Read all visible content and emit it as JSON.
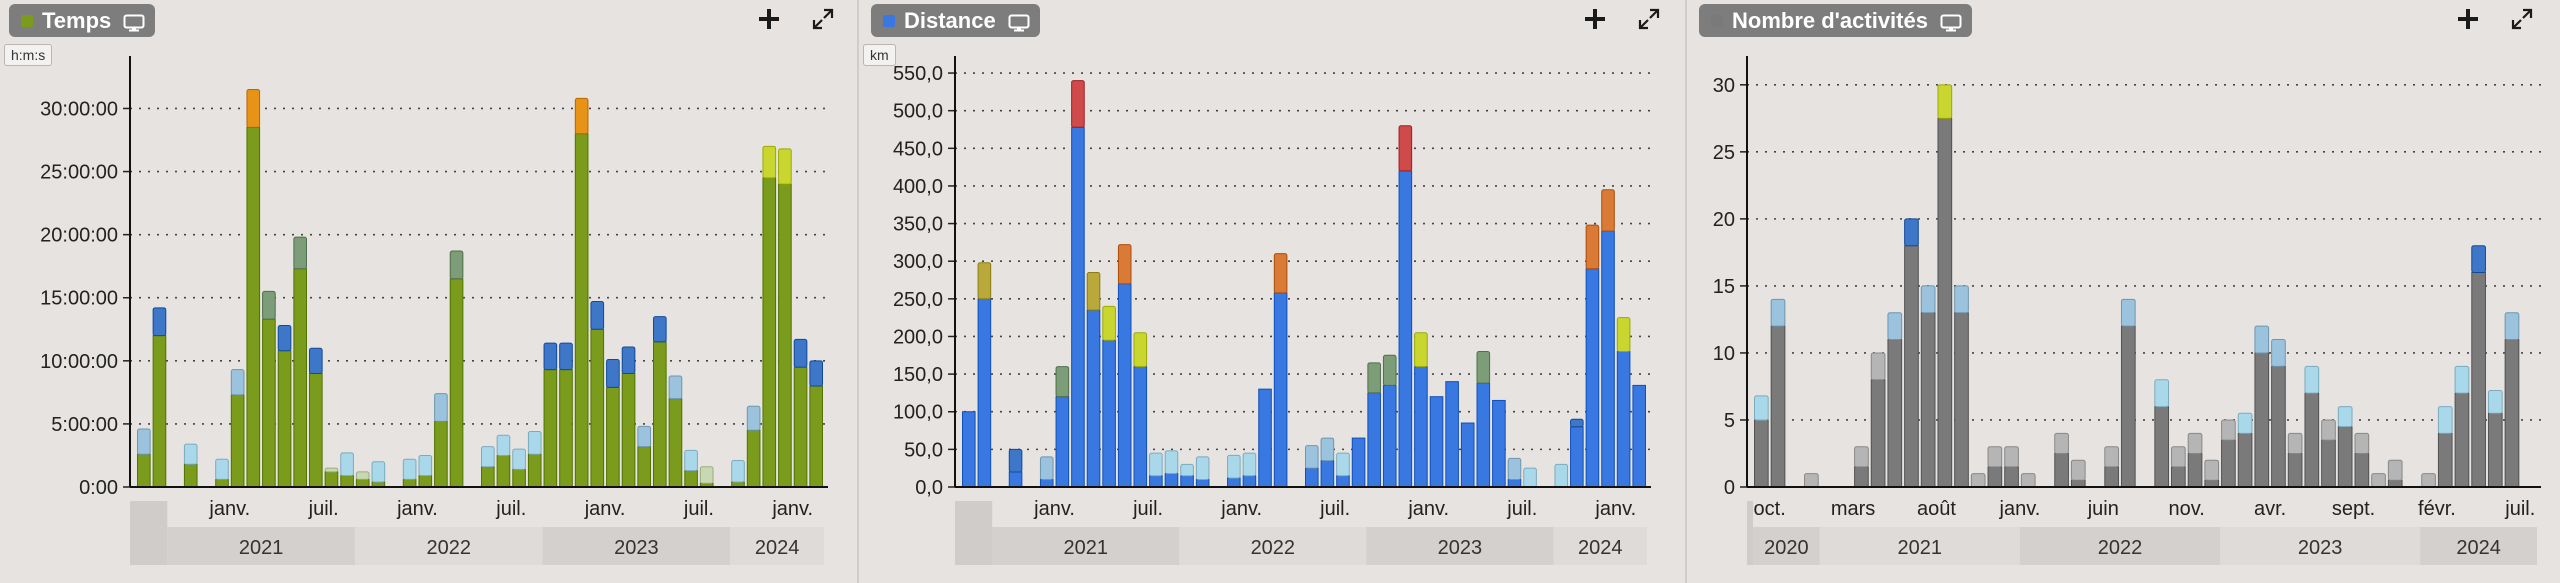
{
  "panels": [
    {
      "title": "Temps",
      "color": "#7a9b1c",
      "unit_label": "h:m:s",
      "add_label": "+",
      "chart_data": {
        "type": "bar",
        "stacked": true,
        "y_ticks": [
          "0:00",
          "5:00:00",
          "10:00:00",
          "15:00:00",
          "20:00:00",
          "25:00:00",
          "30:00:00"
        ],
        "ylim": [
          0,
          34
        ],
        "y_tick_values": [
          0,
          5,
          10,
          15,
          20,
          25,
          30
        ],
        "x_tick_labels": [
          {
            "label": "janv.",
            "x": 6
          },
          {
            "label": "juil.",
            "x": 12
          },
          {
            "label": "janv.",
            "x": 18
          },
          {
            "label": "juil.",
            "x": 24
          },
          {
            "label": "janv.",
            "x": 30
          },
          {
            "label": "juil.",
            "x": 36
          },
          {
            "label": "janv.",
            "x": 42
          },
          {
            "label": "juil.",
            "x": 48
          }
        ],
        "year_bands": [
          {
            "label": "2021",
            "from": 2,
            "to": 14
          },
          {
            "label": "2022",
            "from": 14,
            "to": 26
          },
          {
            "label": "2023",
            "from": 26,
            "to": 38
          },
          {
            "label": "2024",
            "from": 38,
            "to": 44
          }
        ],
        "n_slots": 44,
        "bars": [
          {
            "x": 0,
            "base": 2.6,
            "top": 2.0,
            "cap": "#9bc3dd"
          },
          {
            "x": 1,
            "base": 12.0,
            "top": 2.2,
            "cap": "#3e77c8"
          },
          {
            "x": 3,
            "base": 1.8,
            "top": 1.6,
            "cap": "#a8d8ea"
          },
          {
            "x": 5,
            "base": 0.6,
            "top": 1.6,
            "cap": "#a8d8ea"
          },
          {
            "x": 6,
            "base": 7.3,
            "top": 2.0,
            "cap": "#9bc3dd"
          },
          {
            "x": 7,
            "base": 28.5,
            "top": 3.0,
            "cap": "#e69317"
          },
          {
            "x": 8,
            "base": 13.3,
            "top": 2.2,
            "cap": "#7d9d78"
          },
          {
            "x": 9,
            "base": 10.8,
            "top": 2.0,
            "cap": "#3e77c8"
          },
          {
            "x": 10,
            "base": 17.3,
            "top": 2.5,
            "cap": "#7d9d78"
          },
          {
            "x": 11,
            "base": 9.0,
            "top": 2.0,
            "cap": "#3e77c8"
          },
          {
            "x": 12,
            "base": 1.2,
            "top": 0.3,
            "cap": "#c7d9b0"
          },
          {
            "x": 13,
            "base": 0.9,
            "top": 1.8,
            "cap": "#a8d8ea"
          },
          {
            "x": 14,
            "base": 0.6,
            "top": 0.6,
            "cap": "#c7d9b0"
          },
          {
            "x": 15,
            "base": 0.4,
            "top": 1.6,
            "cap": "#a8d8ea"
          },
          {
            "x": 17,
            "base": 0.6,
            "top": 1.6,
            "cap": "#a8d8ea"
          },
          {
            "x": 18,
            "base": 0.9,
            "top": 1.6,
            "cap": "#a8d8ea"
          },
          {
            "x": 19,
            "base": 5.2,
            "top": 2.2,
            "cap": "#9bc3dd"
          },
          {
            "x": 20,
            "base": 16.5,
            "top": 2.2,
            "cap": "#7d9d78"
          },
          {
            "x": 22,
            "base": 1.6,
            "top": 1.6,
            "cap": "#a8d8ea"
          },
          {
            "x": 23,
            "base": 2.5,
            "top": 1.6,
            "cap": "#a8d8ea"
          },
          {
            "x": 24,
            "base": 1.4,
            "top": 1.6,
            "cap": "#a8d8ea"
          },
          {
            "x": 25,
            "base": 2.6,
            "top": 1.8,
            "cap": "#a8d8ea"
          },
          {
            "x": 26,
            "base": 9.3,
            "top": 2.1,
            "cap": "#3e77c8"
          },
          {
            "x": 27,
            "base": 9.3,
            "top": 2.1,
            "cap": "#3e77c8"
          },
          {
            "x": 28,
            "base": 28.0,
            "top": 2.8,
            "cap": "#e69317"
          },
          {
            "x": 29,
            "base": 12.5,
            "top": 2.2,
            "cap": "#3e77c8"
          },
          {
            "x": 30,
            "base": 7.9,
            "top": 2.2,
            "cap": "#3e77c8"
          },
          {
            "x": 31,
            "base": 9.0,
            "top": 2.1,
            "cap": "#3e77c8"
          },
          {
            "x": 32,
            "base": 3.2,
            "top": 1.6,
            "cap": "#9bc3dd"
          },
          {
            "x": 33,
            "base": 11.5,
            "top": 2.0,
            "cap": "#3e77c8"
          },
          {
            "x": 34,
            "base": 7.0,
            "top": 1.8,
            "cap": "#9bc3dd"
          },
          {
            "x": 35,
            "base": 1.3,
            "top": 1.6,
            "cap": "#a8d8ea"
          },
          {
            "x": 36,
            "base": 0.3,
            "top": 1.3,
            "cap": "#c7d9b0"
          },
          {
            "x": 38,
            "base": 0.4,
            "top": 1.7,
            "cap": "#a8d8ea"
          },
          {
            "x": 39,
            "base": 4.5,
            "top": 1.9,
            "cap": "#9bc3dd"
          },
          {
            "x": 40,
            "base": 24.5,
            "top": 2.5,
            "cap": "#c9d630"
          },
          {
            "x": 41,
            "base": 24.0,
            "top": 2.8,
            "cap": "#c9d630"
          },
          {
            "x": 42,
            "base": 9.5,
            "top": 2.2,
            "cap": "#3e77c8"
          },
          {
            "x": 43,
            "base": 8.0,
            "top": 2.0,
            "cap": "#3e77c8"
          }
        ]
      }
    },
    {
      "title": "Distance",
      "color": "#3978e0",
      "unit_label": "km",
      "add_label": "+",
      "chart_data": {
        "type": "bar",
        "stacked": true,
        "y_ticks": [
          "0,0",
          "50,0",
          "100,0",
          "150,0",
          "200,0",
          "250,0",
          "300,0",
          "350,0",
          "400,0",
          "450,0",
          "500,0",
          "550,0"
        ],
        "ylim": [
          0,
          570
        ],
        "y_tick_values": [
          0,
          50,
          100,
          150,
          200,
          250,
          300,
          350,
          400,
          450,
          500,
          550
        ],
        "x_tick_labels": [
          {
            "label": "janv.",
            "x": 6
          },
          {
            "label": "juil.",
            "x": 12
          },
          {
            "label": "janv.",
            "x": 18
          },
          {
            "label": "juil.",
            "x": 24
          },
          {
            "label": "janv.",
            "x": 30
          },
          {
            "label": "juil.",
            "x": 36
          },
          {
            "label": "janv.",
            "x": 42
          },
          {
            "label": "juil.",
            "x": 48
          }
        ],
        "year_bands": [
          {
            "label": "2021",
            "from": 2,
            "to": 14
          },
          {
            "label": "2022",
            "from": 14,
            "to": 26
          },
          {
            "label": "2023",
            "from": 26,
            "to": 38
          },
          {
            "label": "2024",
            "from": 38,
            "to": 44
          }
        ],
        "n_slots": 44,
        "bars": [
          {
            "x": 0,
            "base": 100,
            "top": 0,
            "cap": "#3e77c8"
          },
          {
            "x": 1,
            "base": 250,
            "top": 48,
            "cap": "#b9a93b"
          },
          {
            "x": 3,
            "base": 20,
            "top": 30,
            "cap": "#3e77c8"
          },
          {
            "x": 5,
            "base": 10,
            "top": 30,
            "cap": "#9bc3dd"
          },
          {
            "x": 6,
            "base": 120,
            "top": 40,
            "cap": "#7d9d78"
          },
          {
            "x": 7,
            "base": 478,
            "top": 62,
            "cap": "#cf4a4a"
          },
          {
            "x": 8,
            "base": 235,
            "top": 50,
            "cap": "#b9a93b"
          },
          {
            "x": 9,
            "base": 195,
            "top": 45,
            "cap": "#c9d630"
          },
          {
            "x": 10,
            "base": 270,
            "top": 52,
            "cap": "#d97b36"
          },
          {
            "x": 11,
            "base": 160,
            "top": 45,
            "cap": "#c9d630"
          },
          {
            "x": 12,
            "base": 15,
            "top": 30,
            "cap": "#a8d8ea"
          },
          {
            "x": 13,
            "base": 18,
            "top": 30,
            "cap": "#a8d8ea"
          },
          {
            "x": 14,
            "base": 15,
            "top": 15,
            "cap": "#a8d8ea"
          },
          {
            "x": 15,
            "base": 10,
            "top": 30,
            "cap": "#a8d8ea"
          },
          {
            "x": 17,
            "base": 12,
            "top": 30,
            "cap": "#a8d8ea"
          },
          {
            "x": 18,
            "base": 15,
            "top": 30,
            "cap": "#a8d8ea"
          },
          {
            "x": 19,
            "base": 130,
            "top": 0,
            "cap": "#3e77c8"
          },
          {
            "x": 20,
            "base": 258,
            "top": 52,
            "cap": "#d97b36"
          },
          {
            "x": 22,
            "base": 25,
            "top": 30,
            "cap": "#9bc3dd"
          },
          {
            "x": 23,
            "base": 35,
            "top": 30,
            "cap": "#9bc3dd"
          },
          {
            "x": 24,
            "base": 15,
            "top": 30,
            "cap": "#a8d8ea"
          },
          {
            "x": 25,
            "base": 65,
            "top": 0,
            "cap": "#3e77c8"
          },
          {
            "x": 26,
            "base": 125,
            "top": 40,
            "cap": "#7d9d78"
          },
          {
            "x": 27,
            "base": 135,
            "top": 40,
            "cap": "#7d9d78"
          },
          {
            "x": 28,
            "base": 420,
            "top": 60,
            "cap": "#cf4a4a"
          },
          {
            "x": 29,
            "base": 160,
            "top": 45,
            "cap": "#c9d630"
          },
          {
            "x": 30,
            "base": 120,
            "top": 0,
            "cap": "#3e77c8"
          },
          {
            "x": 31,
            "base": 140,
            "top": 0,
            "cap": "#3e77c8"
          },
          {
            "x": 32,
            "base": 85,
            "top": 0,
            "cap": "#3e77c8"
          },
          {
            "x": 33,
            "base": 138,
            "top": 42,
            "cap": "#7d9d78"
          },
          {
            "x": 34,
            "base": 115,
            "top": 0,
            "cap": "#3e77c8"
          },
          {
            "x": 35,
            "base": 10,
            "top": 28,
            "cap": "#9bc3dd"
          },
          {
            "x": 36,
            "base": 0,
            "top": 25,
            "cap": "#a8d8ea"
          },
          {
            "x": 38,
            "base": 0,
            "top": 30,
            "cap": "#a8d8ea"
          },
          {
            "x": 39,
            "base": 80,
            "top": 10,
            "cap": "#3e77c8"
          },
          {
            "x": 40,
            "base": 290,
            "top": 58,
            "cap": "#d97b36"
          },
          {
            "x": 41,
            "base": 340,
            "top": 55,
            "cap": "#d97b36"
          },
          {
            "x": 42,
            "base": 180,
            "top": 45,
            "cap": "#c9d630"
          },
          {
            "x": 43,
            "base": 135,
            "top": 0,
            "cap": "#3e77c8"
          }
        ]
      }
    },
    {
      "title": "Nombre d'activités",
      "color": "#7a7a7a",
      "unit_label": "",
      "add_label": "+",
      "chart_data": {
        "type": "bar",
        "stacked": true,
        "y_ticks": [
          "0",
          "5",
          "10",
          "15",
          "20",
          "25",
          "30"
        ],
        "ylim": [
          0,
          32
        ],
        "y_tick_values": [
          0,
          5,
          10,
          15,
          20,
          25,
          30
        ],
        "x_tick_labels": [
          {
            "label": "oct.",
            "x": 1
          },
          {
            "label": "mars",
            "x": 6
          },
          {
            "label": "août",
            "x": 11
          },
          {
            "label": "janv.",
            "x": 16
          },
          {
            "label": "juin",
            "x": 21
          },
          {
            "label": "nov.",
            "x": 26
          },
          {
            "label": "avr.",
            "x": 31
          },
          {
            "label": "sept.",
            "x": 36
          },
          {
            "label": "févr.",
            "x": 41
          },
          {
            "label": "juil.",
            "x": 46
          }
        ],
        "year_bands": [
          {
            "label": "2020",
            "from": 0,
            "to": 4
          },
          {
            "label": "2021",
            "from": 4,
            "to": 16
          },
          {
            "label": "2022",
            "from": 16,
            "to": 28
          },
          {
            "label": "2023",
            "from": 28,
            "to": 40
          },
          {
            "label": "2024",
            "from": 40,
            "to": 47
          }
        ],
        "n_slots": 47,
        "bars": [
          {
            "x": 0,
            "base": 5,
            "top": 1.8,
            "cap": "#a8d8ea"
          },
          {
            "x": 1,
            "base": 12,
            "top": 2.0,
            "cap": "#9bc3dd"
          },
          {
            "x": 3,
            "base": 0,
            "top": 1.0,
            "cap": "#b5b5b5"
          },
          {
            "x": 6,
            "base": 1.5,
            "top": 1.5,
            "cap": "#b5b5b5"
          },
          {
            "x": 7,
            "base": 8,
            "top": 2.0,
            "cap": "#b5b5b5"
          },
          {
            "x": 8,
            "base": 11,
            "top": 2.0,
            "cap": "#9bc3dd"
          },
          {
            "x": 9,
            "base": 18,
            "top": 2.0,
            "cap": "#3e77c8"
          },
          {
            "x": 10,
            "base": 13,
            "top": 2.0,
            "cap": "#9bc3dd"
          },
          {
            "x": 11,
            "base": 27.5,
            "top": 2.5,
            "cap": "#c9d630"
          },
          {
            "x": 12,
            "base": 13,
            "top": 2.0,
            "cap": "#9bc3dd"
          },
          {
            "x": 13,
            "base": 0,
            "top": 1.0,
            "cap": "#b5b5b5"
          },
          {
            "x": 14,
            "base": 1.5,
            "top": 1.5,
            "cap": "#b5b5b5"
          },
          {
            "x": 15,
            "base": 1.5,
            "top": 1.5,
            "cap": "#b5b5b5"
          },
          {
            "x": 16,
            "base": 0,
            "top": 1.0,
            "cap": "#b5b5b5"
          },
          {
            "x": 18,
            "base": 2.5,
            "top": 1.5,
            "cap": "#b5b5b5"
          },
          {
            "x": 19,
            "base": 0.5,
            "top": 1.5,
            "cap": "#b5b5b5"
          },
          {
            "x": 21,
            "base": 1.5,
            "top": 1.5,
            "cap": "#b5b5b5"
          },
          {
            "x": 22,
            "base": 12,
            "top": 2.0,
            "cap": "#9bc3dd"
          },
          {
            "x": 24,
            "base": 6,
            "top": 2.0,
            "cap": "#a8d8ea"
          },
          {
            "x": 25,
            "base": 1.5,
            "top": 1.5,
            "cap": "#b5b5b5"
          },
          {
            "x": 26,
            "base": 2.5,
            "top": 1.5,
            "cap": "#b5b5b5"
          },
          {
            "x": 27,
            "base": 0.5,
            "top": 1.5,
            "cap": "#b5b5b5"
          },
          {
            "x": 28,
            "base": 3.5,
            "top": 1.5,
            "cap": "#b5b5b5"
          },
          {
            "x": 29,
            "base": 4,
            "top": 1.5,
            "cap": "#a8d8ea"
          },
          {
            "x": 30,
            "base": 10,
            "top": 2.0,
            "cap": "#9bc3dd"
          },
          {
            "x": 31,
            "base": 9,
            "top": 2.0,
            "cap": "#9bc3dd"
          },
          {
            "x": 32,
            "base": 2.5,
            "top": 1.5,
            "cap": "#b5b5b5"
          },
          {
            "x": 33,
            "base": 7,
            "top": 2.0,
            "cap": "#a8d8ea"
          },
          {
            "x": 34,
            "base": 3.5,
            "top": 1.5,
            "cap": "#b5b5b5"
          },
          {
            "x": 35,
            "base": 4.5,
            "top": 1.5,
            "cap": "#a8d8ea"
          },
          {
            "x": 36,
            "base": 2.5,
            "top": 1.5,
            "cap": "#b5b5b5"
          },
          {
            "x": 37,
            "base": 0,
            "top": 1.0,
            "cap": "#b5b5b5"
          },
          {
            "x": 38,
            "base": 0.5,
            "top": 1.5,
            "cap": "#b5b5b5"
          },
          {
            "x": 40,
            "base": 0,
            "top": 1.0,
            "cap": "#b5b5b5"
          },
          {
            "x": 41,
            "base": 4,
            "top": 2.0,
            "cap": "#a8d8ea"
          },
          {
            "x": 42,
            "base": 7,
            "top": 2.0,
            "cap": "#a8d8ea"
          },
          {
            "x": 43,
            "base": 16,
            "top": 2.0,
            "cap": "#3e77c8"
          },
          {
            "x": 44,
            "base": 5.5,
            "top": 1.7,
            "cap": "#a8d8ea"
          },
          {
            "x": 45,
            "base": 11,
            "top": 2.0,
            "cap": "#9bc3dd"
          }
        ]
      }
    }
  ]
}
